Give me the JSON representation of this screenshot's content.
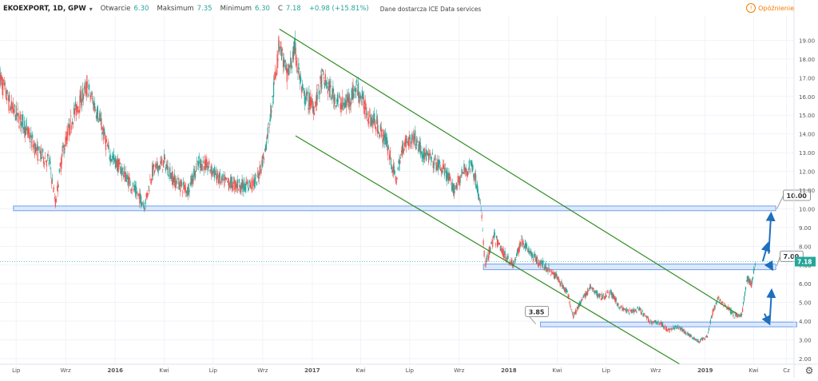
{
  "header": {
    "symbol": "EKOEXPORT, 1D, GPW",
    "chevron_icon": "chevron-down-icon",
    "open_label": "Otwarcie",
    "open_value": "6.30",
    "high_label": "Maksimum",
    "high_value": "7.35",
    "low_label": "Minimum",
    "low_value": "6.30",
    "close_label": "C",
    "close_value": "7.18",
    "change": "+0.98 (+15.81%)",
    "source": "Dane dostarcza ICE Data services",
    "delay": "Opóźnienie",
    "delay_icon": "clock-icon",
    "settings_icon": "gear-icon"
  },
  "colors": {
    "up": "#26a69a",
    "down": "#ef5350",
    "channel": "#2e8b1f",
    "zone_fill": "#dce9fb",
    "zone_stroke": "#6ea0ef",
    "arrow": "#1f6fbf",
    "price_badge": "#26a69a"
  },
  "chart_data": {
    "type": "candlestick",
    "ylim": [
      1.7,
      20.3
    ],
    "y_ticks": [
      "2.00",
      "3.00",
      "4.00",
      "5.00",
      "6.00",
      "7.00",
      "8.00",
      "9.00",
      "10.00",
      "11.00",
      "12.00",
      "13.00",
      "14.00",
      "15.00",
      "16.00",
      "17.00",
      "18.00",
      "19.00"
    ],
    "x_range": [
      "2015-06-01",
      "2019-06-15"
    ],
    "x_ticks": [
      {
        "date": "2015-07-01",
        "label": "Lip"
      },
      {
        "date": "2015-10-01",
        "label": "Wrz"
      },
      {
        "date": "2016-01-01",
        "label": "2016"
      },
      {
        "date": "2016-04-01",
        "label": "Kwi"
      },
      {
        "date": "2016-07-01",
        "label": "Lip"
      },
      {
        "date": "2016-10-01",
        "label": "Wrz"
      },
      {
        "date": "2017-01-01",
        "label": "2017"
      },
      {
        "date": "2017-04-01",
        "label": "Kwi"
      },
      {
        "date": "2017-07-01",
        "label": "Lip"
      },
      {
        "date": "2017-10-01",
        "label": "Wrz"
      },
      {
        "date": "2018-01-01",
        "label": "2018"
      },
      {
        "date": "2018-04-01",
        "label": "Kwi"
      },
      {
        "date": "2018-07-01",
        "label": "Lip"
      },
      {
        "date": "2018-10-01",
        "label": "Wrz"
      },
      {
        "date": "2019-01-01",
        "label": "2019"
      },
      {
        "date": "2019-04-01",
        "label": "Kwi"
      },
      {
        "date": "2019-06-01",
        "label": "Cz"
      }
    ],
    "price_path": [
      [
        "2015-06-01",
        17.0
      ],
      [
        "2015-06-20",
        15.5
      ],
      [
        "2015-07-15",
        14.5
      ],
      [
        "2015-08-10",
        13.0
      ],
      [
        "2015-09-01",
        12.5
      ],
      [
        "2015-09-12",
        10.3
      ],
      [
        "2015-09-25",
        13.0
      ],
      [
        "2015-10-15",
        15.0
      ],
      [
        "2015-11-10",
        16.5
      ],
      [
        "2015-12-01",
        15.0
      ],
      [
        "2015-12-20",
        13.0
      ],
      [
        "2016-01-15",
        12.0
      ],
      [
        "2016-02-10",
        10.8
      ],
      [
        "2016-02-25",
        10.2
      ],
      [
        "2016-03-10",
        12.0
      ],
      [
        "2016-04-01",
        12.5
      ],
      [
        "2016-04-20",
        11.5
      ],
      [
        "2016-05-15",
        11.0
      ],
      [
        "2016-06-05",
        12.5
      ],
      [
        "2016-06-25",
        12.2
      ],
      [
        "2016-07-15",
        11.5
      ],
      [
        "2016-08-10",
        11.3
      ],
      [
        "2016-09-01",
        11.2
      ],
      [
        "2016-09-20",
        11.5
      ],
      [
        "2016-10-05",
        13.0
      ],
      [
        "2016-10-20",
        16.0
      ],
      [
        "2016-11-01",
        19.0
      ],
      [
        "2016-11-15",
        17.0
      ],
      [
        "2016-11-30",
        18.5
      ],
      [
        "2016-12-15",
        16.0
      ],
      [
        "2017-01-05",
        15.5
      ],
      [
        "2017-01-20",
        17.0
      ],
      [
        "2017-02-10",
        16.0
      ],
      [
        "2017-03-01",
        15.5
      ],
      [
        "2017-03-25",
        16.5
      ],
      [
        "2017-04-15",
        15.0
      ],
      [
        "2017-05-01",
        14.5
      ],
      [
        "2017-05-20",
        13.5
      ],
      [
        "2017-06-05",
        11.5
      ],
      [
        "2017-06-20",
        13.5
      ],
      [
        "2017-07-10",
        13.8
      ],
      [
        "2017-07-25",
        13.0
      ],
      [
        "2017-08-15",
        12.5
      ],
      [
        "2017-09-05",
        12.0
      ],
      [
        "2017-09-20",
        11.0
      ],
      [
        "2017-10-10",
        12.0
      ],
      [
        "2017-10-25",
        12.3
      ],
      [
        "2017-11-05",
        11.0
      ],
      [
        "2017-11-12",
        9.5
      ],
      [
        "2017-11-18",
        7.0
      ],
      [
        "2017-12-05",
        8.5
      ],
      [
        "2017-12-25",
        7.5
      ],
      [
        "2018-01-10",
        7.0
      ],
      [
        "2018-01-25",
        8.3
      ],
      [
        "2018-02-20",
        7.3
      ],
      [
        "2018-03-15",
        6.8
      ],
      [
        "2018-04-05",
        6.2
      ],
      [
        "2018-04-20",
        5.5
      ],
      [
        "2018-05-01",
        4.3
      ],
      [
        "2018-05-15",
        5.0
      ],
      [
        "2018-06-01",
        5.8
      ],
      [
        "2018-06-20",
        5.3
      ],
      [
        "2018-07-10",
        5.5
      ],
      [
        "2018-07-25",
        4.8
      ],
      [
        "2018-08-10",
        4.5
      ],
      [
        "2018-09-01",
        4.6
      ],
      [
        "2018-09-20",
        4.0
      ],
      [
        "2018-10-10",
        3.9
      ],
      [
        "2018-10-25",
        3.5
      ],
      [
        "2018-11-10",
        3.7
      ],
      [
        "2018-12-01",
        3.3
      ],
      [
        "2018-12-20",
        2.9
      ],
      [
        "2019-01-05",
        3.2
      ],
      [
        "2019-01-15",
        4.5
      ],
      [
        "2019-01-25",
        5.2
      ],
      [
        "2019-02-10",
        4.8
      ],
      [
        "2019-02-25",
        4.3
      ],
      [
        "2019-03-10",
        4.3
      ],
      [
        "2019-03-20",
        6.3
      ],
      [
        "2019-03-28",
        6.0
      ],
      [
        "2019-04-05",
        7.2
      ]
    ],
    "channel_lines": [
      {
        "from": [
          "2016-11-01",
          19.6
        ],
        "to": [
          "2019-03-01",
          4.4
        ]
      },
      {
        "from": [
          "2016-12-01",
          13.9
        ],
        "to": [
          "2018-11-15",
          1.7
        ]
      }
    ],
    "zones": [
      {
        "from": "2015-06-26",
        "to": "2019-05-12",
        "low": 9.9,
        "high": 10.15
      },
      {
        "from": "2017-11-15",
        "to": "2019-05-12",
        "low": 6.75,
        "high": 7.05
      },
      {
        "from": "2018-03-01",
        "to": "2019-06-20",
        "low": 3.7,
        "high": 3.95
      }
    ],
    "annotations": [
      {
        "text": "10.00",
        "date": "2019-05-14",
        "price": 10.0,
        "box_date": "2019-05-26",
        "box_price": 10.7
      },
      {
        "text": "7.00",
        "date": "2019-05-14",
        "price": 6.95,
        "box_date": "2019-05-20",
        "box_price": 7.45
      },
      {
        "text": "3.85",
        "date": "2018-02-20",
        "price": 3.85,
        "box_date": "2018-02-01",
        "box_price": 4.5
      }
    ],
    "arrows": [
      {
        "from": [
          "2019-04-18",
          7.2
        ],
        "to": [
          "2019-04-26",
          8.0
        ]
      },
      {
        "from": [
          "2019-04-29",
          7.6
        ],
        "to": [
          "2019-05-03",
          9.6
        ]
      },
      {
        "from": [
          "2019-04-29",
          7.1
        ],
        "to": [
          "2019-05-03",
          6.9
        ]
      },
      {
        "from": [
          "2019-04-21",
          4.4
        ],
        "to": [
          "2019-04-28",
          4.0
        ]
      },
      {
        "from": [
          "2019-05-01",
          4.0
        ],
        "to": [
          "2019-05-04",
          5.5
        ]
      }
    ],
    "last_price": "7.18",
    "last_price_value": 7.18
  }
}
